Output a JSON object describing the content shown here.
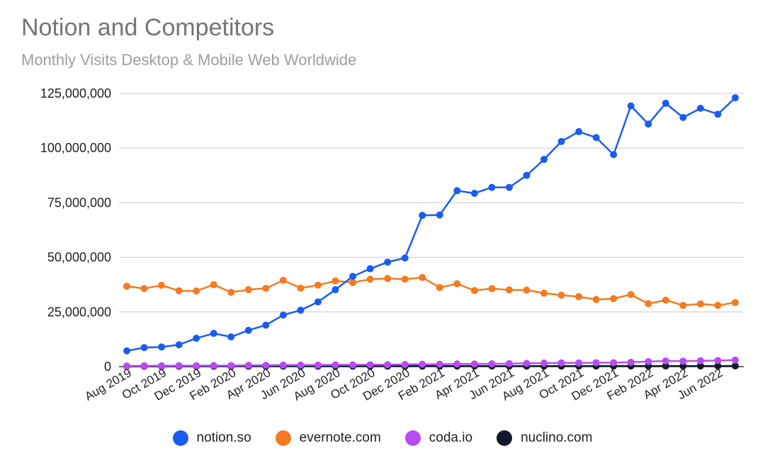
{
  "chart_data": {
    "type": "line",
    "title": "Notion and Competitors",
    "subtitle": "Monthly Visits Desktop & Mobile Web Worldwide",
    "xlabel": "",
    "ylabel": "",
    "ylim": [
      0,
      125000000
    ],
    "y_ticks": [
      0,
      25000000,
      50000000,
      75000000,
      100000000,
      125000000
    ],
    "y_tick_labels": [
      "0",
      "25,000,000",
      "50,000,000",
      "75,000,000",
      "100,000,000",
      "125,000,000"
    ],
    "grid": true,
    "legend_position": "bottom",
    "categories": [
      "Aug 2019",
      "Sep 2019",
      "Oct 2019",
      "Nov 2019",
      "Dec 2019",
      "Jan 2020",
      "Feb 2020",
      "Mar 2020",
      "Apr 2020",
      "May 2020",
      "Jun 2020",
      "Jul 2020",
      "Aug 2020",
      "Sep 2020",
      "Oct 2020",
      "Nov 2020",
      "Dec 2020",
      "Jan 2021",
      "Feb 2021",
      "Mar 2021",
      "Apr 2021",
      "May 2021",
      "Jun 2021",
      "Jul 2021",
      "Aug 2021",
      "Sep 2021",
      "Oct 2021",
      "Nov 2021",
      "Dec 2021",
      "Jan 2022",
      "Feb 2022",
      "Mar 2022",
      "Apr 2022",
      "May 2022",
      "Jun 2022",
      "Jul 2022"
    ],
    "x_tick_labels": [
      "Aug 2019",
      "Oct 2019",
      "Dec 2019",
      "Feb 2020",
      "Apr 2020",
      "Jun 2020",
      "Aug 2020",
      "Oct 2020",
      "Dec 2020",
      "Feb 2021",
      "Apr 2021",
      "Jun 2021",
      "Aug 2021",
      "Oct 2021",
      "Dec 2021",
      "Feb 2022",
      "Apr 2022",
      "Jun 2022"
    ],
    "series": [
      {
        "name": "notion.so",
        "color": "#1a5cf0",
        "values": [
          7200000,
          8700000,
          9000000,
          10000000,
          13000000,
          15200000,
          13600000,
          16600000,
          19000000,
          23600000,
          25800000,
          29600000,
          35200000,
          41300000,
          44800000,
          47800000,
          49700000,
          69200000,
          69400000,
          80500000,
          79300000,
          82000000,
          82000000,
          87500000,
          94800000,
          103000000,
          107500000,
          104800000,
          97000000,
          119300000,
          111000000,
          120500000,
          114000000,
          118200000,
          115500000,
          123000000
        ]
      },
      {
        "name": "evernote.com",
        "color": "#f57a20",
        "values": [
          36800000,
          35700000,
          37200000,
          34700000,
          34600000,
          37500000,
          34000000,
          35200000,
          35800000,
          39500000,
          35900000,
          37300000,
          39200000,
          38500000,
          40000000,
          40300000,
          40000000,
          40800000,
          36200000,
          37900000,
          34800000,
          35700000,
          35100000,
          35000000,
          33600000,
          32700000,
          32000000,
          30700000,
          31100000,
          33000000,
          28800000,
          30400000,
          28000000,
          28700000,
          28000000,
          29300000
        ]
      },
      {
        "name": "coda.io",
        "color": "#b74cf2",
        "values": [
          300000,
          400000,
          400000,
          450000,
          450000,
          500000,
          500000,
          600000,
          600000,
          700000,
          700000,
          700000,
          800000,
          800000,
          900000,
          900000,
          1000000,
          1100000,
          1100000,
          1200000,
          1200000,
          1300000,
          1400000,
          1500000,
          1600000,
          1700000,
          1700000,
          1800000,
          1800000,
          2000000,
          2300000,
          2600000,
          2500000,
          2700000,
          2800000,
          3000000
        ]
      },
      {
        "name": "nuclino.com",
        "color": "#0f1b2d",
        "values": [
          150000,
          160000,
          160000,
          170000,
          170000,
          180000,
          180000,
          190000,
          190000,
          200000,
          200000,
          200000,
          210000,
          210000,
          220000,
          220000,
          220000,
          230000,
          230000,
          240000,
          240000,
          250000,
          250000,
          250000,
          260000,
          260000,
          270000,
          270000,
          270000,
          280000,
          280000,
          290000,
          290000,
          300000,
          300000,
          310000
        ]
      }
    ]
  }
}
